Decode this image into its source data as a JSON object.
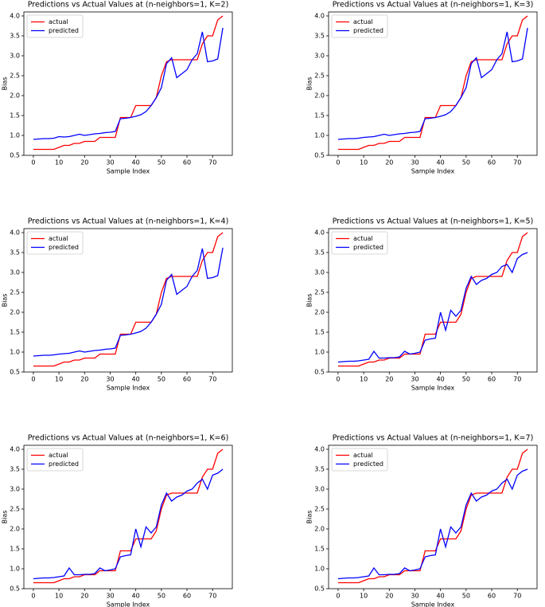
{
  "chart_data": [
    {
      "type": "line",
      "title": "Predictions vs Actual Values at (n-neighbors=1, K=2)",
      "xlabel": "Sample Index",
      "ylabel": "Bias",
      "x": [
        0,
        2,
        4,
        6,
        8,
        10,
        12,
        14,
        16,
        18,
        20,
        22,
        24,
        26,
        28,
        30,
        32,
        34,
        36,
        38,
        40,
        42,
        44,
        46,
        48,
        50,
        52,
        54,
        56,
        58,
        60,
        62,
        64,
        66,
        68,
        70,
        72,
        74
      ],
      "series": [
        {
          "name": "actual",
          "color": "#ff0000",
          "values": [
            0.65,
            0.65,
            0.65,
            0.65,
            0.65,
            0.7,
            0.75,
            0.75,
            0.8,
            0.8,
            0.85,
            0.85,
            0.85,
            0.95,
            0.95,
            0.95,
            0.95,
            1.45,
            1.45,
            1.45,
            1.75,
            1.75,
            1.75,
            1.75,
            1.95,
            2.5,
            2.85,
            2.9,
            2.9,
            2.9,
            2.9,
            2.9,
            2.9,
            3.3,
            3.5,
            3.5,
            3.9,
            4.0
          ]
        },
        {
          "name": "predicted",
          "color": "#0000ff",
          "values": [
            0.9,
            0.91,
            0.92,
            0.92,
            0.93,
            0.97,
            0.96,
            0.97,
            1.0,
            1.03,
            1.0,
            1.02,
            1.04,
            1.05,
            1.07,
            1.08,
            1.1,
            1.42,
            1.43,
            1.45,
            1.48,
            1.52,
            1.6,
            1.75,
            1.95,
            2.2,
            2.8,
            2.95,
            2.45,
            2.55,
            2.65,
            2.9,
            3.05,
            3.6,
            2.85,
            2.87,
            2.92,
            3.7
          ]
        }
      ],
      "xlim": [
        -3.7,
        77.7
      ],
      "ylim": [
        0.5,
        4.1
      ],
      "xticks": [
        0,
        10,
        20,
        30,
        40,
        50,
        60,
        70
      ],
      "yticks": [
        0.5,
        {
          "value": 1,
          "label": "1.0"
        },
        1.5,
        {
          "value": 2,
          "label": "2.0"
        },
        2.5,
        {
          "value": 3,
          "label": "3.0"
        },
        3.5,
        {
          "value": 4,
          "label": "4.0"
        }
      ],
      "legend": "upper left"
    },
    {
      "type": "line",
      "title": "Predictions vs Actual Values at (n-neighbors=1, K=3)",
      "xlabel": "Sample Index",
      "ylabel": "Bias",
      "x": [
        0,
        2,
        4,
        6,
        8,
        10,
        12,
        14,
        16,
        18,
        20,
        22,
        24,
        26,
        28,
        30,
        32,
        34,
        36,
        38,
        40,
        42,
        44,
        46,
        48,
        50,
        52,
        54,
        56,
        58,
        60,
        62,
        64,
        66,
        68,
        70,
        72,
        74
      ],
      "series": [
        {
          "name": "actual",
          "color": "#ff0000",
          "values": [
            0.65,
            0.65,
            0.65,
            0.65,
            0.65,
            0.7,
            0.75,
            0.75,
            0.8,
            0.8,
            0.85,
            0.85,
            0.85,
            0.95,
            0.95,
            0.95,
            0.95,
            1.45,
            1.45,
            1.45,
            1.75,
            1.75,
            1.75,
            1.75,
            1.95,
            2.5,
            2.85,
            2.9,
            2.9,
            2.9,
            2.9,
            2.9,
            2.9,
            3.3,
            3.5,
            3.5,
            3.9,
            4.0
          ]
        },
        {
          "name": "predicted",
          "color": "#0000ff",
          "values": [
            0.9,
            0.91,
            0.92,
            0.92,
            0.93,
            0.95,
            0.96,
            0.97,
            1.0,
            1.03,
            1.0,
            1.02,
            1.04,
            1.05,
            1.07,
            1.08,
            1.1,
            1.42,
            1.43,
            1.45,
            1.48,
            1.52,
            1.6,
            1.75,
            1.95,
            2.2,
            2.8,
            2.95,
            2.45,
            2.55,
            2.65,
            2.9,
            3.05,
            3.6,
            2.85,
            2.87,
            2.92,
            3.7
          ]
        }
      ],
      "xlim": [
        -3.7,
        77.7
      ],
      "ylim": [
        0.5,
        4.1
      ],
      "xticks": [
        0,
        10,
        20,
        30,
        40,
        50,
        60,
        70
      ],
      "yticks": [
        0.5,
        {
          "value": 1,
          "label": "1.0"
        },
        1.5,
        {
          "value": 2,
          "label": "2.0"
        },
        2.5,
        {
          "value": 3,
          "label": "3.0"
        },
        3.5,
        {
          "value": 4,
          "label": "4.0"
        }
      ],
      "legend": "upper left"
    },
    {
      "type": "line",
      "title": "Predictions vs Actual Values at (n-neighbors=1, K=4)",
      "xlabel": "Sample Index",
      "ylabel": "Bias",
      "x": [
        0,
        2,
        4,
        6,
        8,
        10,
        12,
        14,
        16,
        18,
        20,
        22,
        24,
        26,
        28,
        30,
        32,
        34,
        36,
        38,
        40,
        42,
        44,
        46,
        48,
        50,
        52,
        54,
        56,
        58,
        60,
        62,
        64,
        66,
        68,
        70,
        72,
        74
      ],
      "series": [
        {
          "name": "actual",
          "color": "#ff0000",
          "values": [
            0.65,
            0.65,
            0.65,
            0.65,
            0.65,
            0.7,
            0.75,
            0.75,
            0.8,
            0.8,
            0.85,
            0.85,
            0.85,
            0.95,
            0.95,
            0.95,
            0.95,
            1.45,
            1.45,
            1.45,
            1.75,
            1.75,
            1.75,
            1.75,
            1.95,
            2.5,
            2.85,
            2.9,
            2.9,
            2.9,
            2.9,
            2.9,
            2.9,
            3.3,
            3.5,
            3.5,
            3.9,
            4.0
          ]
        },
        {
          "name": "predicted",
          "color": "#0000ff",
          "values": [
            0.9,
            0.91,
            0.92,
            0.92,
            0.93,
            0.95,
            0.96,
            0.97,
            1.0,
            1.03,
            1.0,
            1.02,
            1.04,
            1.05,
            1.07,
            1.08,
            1.1,
            1.42,
            1.43,
            1.45,
            1.48,
            1.52,
            1.6,
            1.75,
            1.95,
            2.2,
            2.8,
            2.95,
            2.45,
            2.55,
            2.65,
            2.9,
            3.05,
            3.6,
            2.85,
            2.87,
            2.92,
            3.62
          ]
        }
      ],
      "xlim": [
        -3.7,
        77.7
      ],
      "ylim": [
        0.5,
        4.1
      ],
      "xticks": [
        0,
        10,
        20,
        30,
        40,
        50,
        60,
        70
      ],
      "yticks": [
        0.5,
        {
          "value": 1,
          "label": "1.0"
        },
        1.5,
        {
          "value": 2,
          "label": "2.0"
        },
        2.5,
        {
          "value": 3,
          "label": "3.0"
        },
        3.5,
        {
          "value": 4,
          "label": "4.0"
        }
      ],
      "legend": "upper left"
    },
    {
      "type": "line",
      "title": "Predictions vs Actual Values at (n-neighbors=1, K=5)",
      "xlabel": "Sample Index",
      "ylabel": "Bias",
      "x": [
        0,
        2,
        4,
        6,
        8,
        10,
        12,
        14,
        16,
        18,
        20,
        22,
        24,
        26,
        28,
        30,
        32,
        34,
        36,
        38,
        40,
        42,
        44,
        46,
        48,
        50,
        52,
        54,
        56,
        58,
        60,
        62,
        64,
        66,
        68,
        70,
        72,
        74
      ],
      "series": [
        {
          "name": "actual",
          "color": "#ff0000",
          "values": [
            0.65,
            0.65,
            0.65,
            0.65,
            0.65,
            0.7,
            0.75,
            0.75,
            0.8,
            0.8,
            0.85,
            0.85,
            0.85,
            0.95,
            0.95,
            0.95,
            0.95,
            1.45,
            1.45,
            1.45,
            1.75,
            1.75,
            1.75,
            1.75,
            1.95,
            2.5,
            2.85,
            2.9,
            2.9,
            2.9,
            2.9,
            2.9,
            2.9,
            3.3,
            3.5,
            3.5,
            3.9,
            4.0
          ]
        },
        {
          "name": "predicted",
          "color": "#0000ff",
          "values": [
            0.75,
            0.76,
            0.77,
            0.77,
            0.78,
            0.8,
            0.82,
            1.02,
            0.85,
            0.85,
            0.86,
            0.86,
            0.88,
            1.02,
            0.95,
            0.97,
            1.0,
            1.3,
            1.33,
            1.35,
            2.0,
            1.55,
            2.05,
            1.9,
            2.05,
            2.6,
            2.9,
            2.7,
            2.8,
            2.85,
            2.95,
            3.0,
            3.15,
            3.2,
            3.0,
            3.35,
            3.45,
            3.5
          ]
        }
      ],
      "xlim": [
        -3.7,
        77.7
      ],
      "ylim": [
        0.5,
        4.1
      ],
      "xticks": [
        0,
        10,
        20,
        30,
        40,
        50,
        60,
        70
      ],
      "yticks": [
        0.5,
        {
          "value": 1,
          "label": "1.0"
        },
        1.5,
        {
          "value": 2,
          "label": "2.0"
        },
        2.5,
        {
          "value": 3,
          "label": "3.0"
        },
        3.5,
        {
          "value": 4,
          "label": "4.0"
        }
      ],
      "legend": "upper left"
    },
    {
      "type": "line",
      "title": "Predictions vs Actual Values at (n-neighbors=1, K=6)",
      "xlabel": "Sample Index",
      "ylabel": "Bias",
      "x": [
        0,
        2,
        4,
        6,
        8,
        10,
        12,
        14,
        16,
        18,
        20,
        22,
        24,
        26,
        28,
        30,
        32,
        34,
        36,
        38,
        40,
        42,
        44,
        46,
        48,
        50,
        52,
        54,
        56,
        58,
        60,
        62,
        64,
        66,
        68,
        70,
        72,
        74
      ],
      "series": [
        {
          "name": "actual",
          "color": "#ff0000",
          "values": [
            0.65,
            0.65,
            0.65,
            0.65,
            0.65,
            0.7,
            0.75,
            0.75,
            0.8,
            0.8,
            0.85,
            0.85,
            0.85,
            0.95,
            0.95,
            0.95,
            0.95,
            1.45,
            1.45,
            1.45,
            1.75,
            1.75,
            1.75,
            1.75,
            1.95,
            2.5,
            2.85,
            2.9,
            2.9,
            2.9,
            2.9,
            2.9,
            2.9,
            3.3,
            3.5,
            3.5,
            3.9,
            4.0
          ]
        },
        {
          "name": "predicted",
          "color": "#0000ff",
          "values": [
            0.75,
            0.76,
            0.77,
            0.77,
            0.78,
            0.8,
            0.82,
            1.02,
            0.85,
            0.85,
            0.86,
            0.86,
            0.88,
            1.02,
            0.95,
            0.97,
            1.0,
            1.3,
            1.33,
            1.35,
            2.0,
            1.55,
            2.05,
            1.9,
            2.05,
            2.6,
            2.9,
            2.7,
            2.8,
            2.85,
            2.95,
            3.0,
            3.15,
            3.25,
            3.0,
            3.35,
            3.4,
            3.5
          ]
        }
      ],
      "xlim": [
        -3.7,
        77.7
      ],
      "ylim": [
        0.5,
        4.1
      ],
      "xticks": [
        0,
        10,
        20,
        30,
        40,
        50,
        60,
        70
      ],
      "yticks": [
        0.5,
        {
          "value": 1,
          "label": "1.0"
        },
        1.5,
        {
          "value": 2,
          "label": "2.0"
        },
        2.5,
        {
          "value": 3,
          "label": "3.0"
        },
        3.5,
        {
          "value": 4,
          "label": "4.0"
        }
      ],
      "legend": "upper left"
    },
    {
      "type": "line",
      "title": "Predictions vs Actual Values at (n-neighbors=1, K=7)",
      "xlabel": "Sample Index",
      "ylabel": "Bias",
      "x": [
        0,
        2,
        4,
        6,
        8,
        10,
        12,
        14,
        16,
        18,
        20,
        22,
        24,
        26,
        28,
        30,
        32,
        34,
        36,
        38,
        40,
        42,
        44,
        46,
        48,
        50,
        52,
        54,
        56,
        58,
        60,
        62,
        64,
        66,
        68,
        70,
        72,
        74
      ],
      "series": [
        {
          "name": "actual",
          "color": "#ff0000",
          "values": [
            0.65,
            0.65,
            0.65,
            0.65,
            0.65,
            0.7,
            0.75,
            0.75,
            0.8,
            0.8,
            0.85,
            0.85,
            0.85,
            0.95,
            0.95,
            0.95,
            0.95,
            1.45,
            1.45,
            1.45,
            1.75,
            1.75,
            1.75,
            1.75,
            1.95,
            2.5,
            2.85,
            2.9,
            2.9,
            2.9,
            2.9,
            2.9,
            2.9,
            3.3,
            3.5,
            3.5,
            3.9,
            4.0
          ]
        },
        {
          "name": "predicted",
          "color": "#0000ff",
          "values": [
            0.75,
            0.76,
            0.77,
            0.77,
            0.78,
            0.8,
            0.82,
            1.02,
            0.85,
            0.85,
            0.86,
            0.86,
            0.88,
            1.02,
            0.95,
            0.97,
            1.0,
            1.3,
            1.33,
            1.35,
            2.0,
            1.55,
            2.05,
            1.9,
            2.05,
            2.6,
            2.9,
            2.7,
            2.8,
            2.85,
            2.95,
            3.0,
            3.15,
            3.25,
            3.0,
            3.35,
            3.45,
            3.5
          ]
        }
      ],
      "xlim": [
        -3.7,
        77.7
      ],
      "ylim": [
        0.5,
        4.1
      ],
      "xticks": [
        0,
        10,
        20,
        30,
        40,
        50,
        60,
        70
      ],
      "yticks": [
        0.5,
        {
          "value": 1,
          "label": "1.0"
        },
        1.5,
        {
          "value": 2,
          "label": "2.0"
        },
        2.5,
        {
          "value": 3,
          "label": "3.0"
        },
        3.5,
        {
          "value": 4,
          "label": "4.0"
        }
      ],
      "legend": "upper left"
    }
  ]
}
